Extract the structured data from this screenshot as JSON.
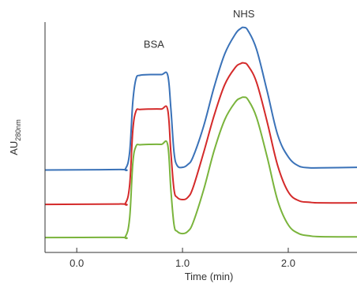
{
  "chart_data": {
    "type": "line",
    "xlabel": "Time (min)",
    "ylabel": "AU",
    "ylabel_subscript": "280nm",
    "xlim": [
      -0.3,
      2.65
    ],
    "ylim": [
      0,
      1
    ],
    "x_ticks": [
      0.0,
      1.0,
      2.0
    ],
    "x_tick_labels": [
      "0.0",
      "1.0",
      "2.0"
    ],
    "grid": false,
    "annotations": [
      {
        "text": "BSA",
        "x": 0.73,
        "y": 0.862
      },
      {
        "text": "NHS",
        "x": 1.58,
        "y": 1.0
      }
    ],
    "series": [
      {
        "color": "#3a72b8",
        "x": [
          -0.3,
          0.4,
          0.46,
          0.5,
          0.53,
          0.56,
          0.6,
          0.7,
          0.8,
          0.86,
          0.89,
          0.92,
          0.95,
          1.0,
          1.05,
          1.1,
          1.2,
          1.3,
          1.4,
          1.5,
          1.55,
          1.58,
          1.62,
          1.7,
          1.8,
          1.9,
          2.0,
          2.1,
          2.2,
          2.3,
          2.65
        ],
        "y": [
          0.34,
          0.342,
          0.345,
          0.42,
          0.65,
          0.755,
          0.772,
          0.775,
          0.775,
          0.773,
          0.62,
          0.42,
          0.36,
          0.352,
          0.365,
          0.4,
          0.54,
          0.72,
          0.87,
          0.96,
          0.985,
          0.99,
          0.975,
          0.89,
          0.7,
          0.5,
          0.4,
          0.358,
          0.35,
          0.35,
          0.352
        ]
      },
      {
        "color": "#d42a2a",
        "x": [
          -0.3,
          0.4,
          0.46,
          0.5,
          0.53,
          0.56,
          0.6,
          0.7,
          0.8,
          0.86,
          0.89,
          0.92,
          0.95,
          1.0,
          1.05,
          1.1,
          1.2,
          1.3,
          1.4,
          1.5,
          1.55,
          1.58,
          1.62,
          1.7,
          1.8,
          1.9,
          2.0,
          2.1,
          2.2,
          2.3,
          2.65
        ],
        "y": [
          0.183,
          0.185,
          0.188,
          0.27,
          0.52,
          0.608,
          0.616,
          0.618,
          0.618,
          0.615,
          0.42,
          0.25,
          0.215,
          0.205,
          0.215,
          0.26,
          0.42,
          0.59,
          0.73,
          0.808,
          0.825,
          0.828,
          0.815,
          0.74,
          0.56,
          0.36,
          0.24,
          0.2,
          0.193,
          0.19,
          0.19
        ]
      },
      {
        "color": "#7ab43c",
        "x": [
          -0.3,
          0.4,
          0.46,
          0.5,
          0.53,
          0.56,
          0.6,
          0.7,
          0.8,
          0.86,
          0.89,
          0.92,
          0.95,
          1.0,
          1.05,
          1.1,
          1.2,
          1.3,
          1.4,
          1.5,
          1.55,
          1.58,
          1.62,
          1.7,
          1.8,
          1.9,
          2.0,
          2.1,
          2.2,
          2.3,
          2.65
        ],
        "y": [
          0.032,
          0.033,
          0.036,
          0.12,
          0.37,
          0.448,
          0.455,
          0.457,
          0.457,
          0.455,
          0.25,
          0.09,
          0.06,
          0.05,
          0.06,
          0.1,
          0.25,
          0.43,
          0.57,
          0.65,
          0.668,
          0.672,
          0.66,
          0.58,
          0.4,
          0.2,
          0.09,
          0.05,
          0.04,
          0.036,
          0.035
        ]
      }
    ]
  }
}
